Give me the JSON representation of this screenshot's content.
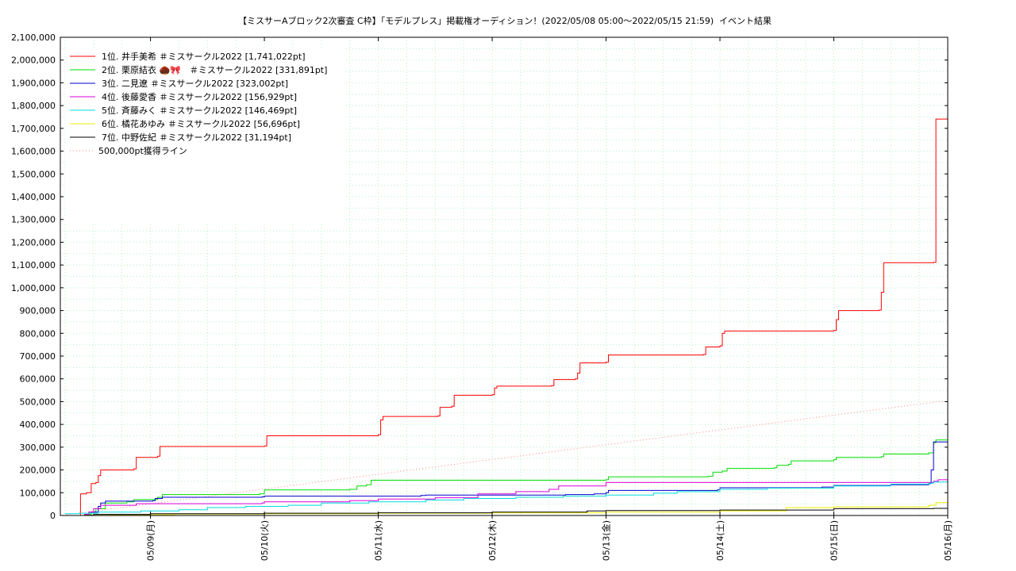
{
  "title": "【ミスサーAブロック2次審査 C枠】「モデルプレス」掲載権オーディション！(2022/05/08 05:00～2022/05/15 21:59)",
  "subtitle": "イベント結果",
  "chart_data": {
    "type": "line",
    "title": "【ミスサーAブロック2次審査 C枠】「モデルプレス」掲載権オーディション！(2022/05/08 05:00～2022/05/15 21:59)",
    "subtitle": "イベント結果",
    "xlabel": "",
    "ylabel": "",
    "x_range": [
      "2022-05-08T05:00",
      "2022-05-16T00:00"
    ],
    "ylim": [
      0,
      2100000
    ],
    "y_ticks": [
      0,
      100000,
      200000,
      300000,
      400000,
      500000,
      600000,
      700000,
      800000,
      900000,
      1000000,
      1100000,
      1200000,
      1300000,
      1400000,
      1500000,
      1600000,
      1700000,
      1800000,
      1900000,
      2000000,
      2100000
    ],
    "y_tick_labels": [
      "0",
      "100,000",
      "200,000",
      "300,000",
      "400,000",
      "500,000",
      "600,000",
      "700,000",
      "800,000",
      "900,000",
      "1,000,000",
      "1,100,000",
      "1,200,000",
      "1,300,000",
      "1,400,000",
      "1,500,000",
      "1,600,000",
      "1,700,000",
      "1,800,000",
      "1,900,000",
      "2,000,000",
      "2,100,000"
    ],
    "x_ticks": [
      "2022-05-09T00:00",
      "2022-05-10T00:00",
      "2022-05-11T00:00",
      "2022-05-12T00:00",
      "2022-05-13T00:00",
      "2022-05-14T00:00",
      "2022-05-15T00:00",
      "2022-05-16T00:00"
    ],
    "x_tick_labels": [
      "05/09(月)",
      "05/10(火)",
      "05/11(水)",
      "05/12(木)",
      "05/13(金)",
      "05/14(土)",
      "05/15(日)",
      "05/16(月)"
    ],
    "grid": true,
    "legend_position": "top-left",
    "series": [
      {
        "name": "1位. 井手美希 ＃ミスサークル2022 [1,741,022pt]",
        "color": "#ff0000",
        "style": "step",
        "points": [
          [
            "2022-05-08T09:00",
            0
          ],
          [
            "2022-05-08T09:15",
            95000
          ],
          [
            "2022-05-08T10:30",
            100000
          ],
          [
            "2022-05-08T11:30",
            140000
          ],
          [
            "2022-05-08T12:30",
            145000
          ],
          [
            "2022-05-08T13:00",
            175000
          ],
          [
            "2022-05-08T13:30",
            200000
          ],
          [
            "2022-05-08T20:30",
            205000
          ],
          [
            "2022-05-08T21:00",
            255000
          ],
          [
            "2022-05-09T01:30",
            260000
          ],
          [
            "2022-05-09T02:00",
            303000
          ],
          [
            "2022-05-10T00:00",
            305000
          ],
          [
            "2022-05-10T00:30",
            350000
          ],
          [
            "2022-05-11T00:00",
            355000
          ],
          [
            "2022-05-11T00:30",
            420000
          ],
          [
            "2022-05-11T01:00",
            435000
          ],
          [
            "2022-05-11T12:30",
            437000
          ],
          [
            "2022-05-11T13:00",
            475000
          ],
          [
            "2022-05-11T15:30",
            480000
          ],
          [
            "2022-05-11T16:00",
            528000
          ],
          [
            "2022-05-12T00:00",
            530000
          ],
          [
            "2022-05-12T00:30",
            560000
          ],
          [
            "2022-05-12T01:00",
            568000
          ],
          [
            "2022-05-12T12:30",
            570000
          ],
          [
            "2022-05-12T13:00",
            597000
          ],
          [
            "2022-05-12T17:30",
            600000
          ],
          [
            "2022-05-12T18:00",
            625000
          ],
          [
            "2022-05-12T18:30",
            670000
          ],
          [
            "2022-05-13T00:00",
            673000
          ],
          [
            "2022-05-13T00:30",
            705000
          ],
          [
            "2022-05-13T20:30",
            707000
          ],
          [
            "2022-05-13T21:00",
            740000
          ],
          [
            "2022-05-14T00:00",
            745000
          ],
          [
            "2022-05-14T00:30",
            800000
          ],
          [
            "2022-05-14T01:00",
            810000
          ],
          [
            "2022-05-15T00:00",
            812000
          ],
          [
            "2022-05-15T00:30",
            860000
          ],
          [
            "2022-05-15T01:00",
            900000
          ],
          [
            "2022-05-15T09:30",
            902000
          ],
          [
            "2022-05-15T10:00",
            980000
          ],
          [
            "2022-05-15T10:30",
            1110000
          ],
          [
            "2022-05-15T21:00",
            1112000
          ],
          [
            "2022-05-15T21:30",
            1741022
          ],
          [
            "2022-05-16T00:00",
            1741022
          ]
        ]
      },
      {
        "name": "2位. 栗原結衣 🌰🎀　＃ミスサークル2022 [331,891pt]",
        "color": "#00dd00",
        "style": "step",
        "points": [
          [
            "2022-05-08T10:00",
            5000
          ],
          [
            "2022-05-08T11:30",
            15000
          ],
          [
            "2022-05-08T12:30",
            30000
          ],
          [
            "2022-05-08T14:30",
            55000
          ],
          [
            "2022-05-08T19:00",
            60000
          ],
          [
            "2022-05-08T20:30",
            70000
          ],
          [
            "2022-05-09T01:30",
            80000
          ],
          [
            "2022-05-09T02:30",
            92000
          ],
          [
            "2022-05-09T23:00",
            95000
          ],
          [
            "2022-05-10T00:00",
            112000
          ],
          [
            "2022-05-10T18:00",
            115000
          ],
          [
            "2022-05-10T19:30",
            130000
          ],
          [
            "2022-05-10T21:30",
            135000
          ],
          [
            "2022-05-10T22:30",
            155000
          ],
          [
            "2022-05-13T00:00",
            157000
          ],
          [
            "2022-05-13T00:30",
            170000
          ],
          [
            "2022-05-13T21:30",
            172000
          ],
          [
            "2022-05-13T22:30",
            190000
          ],
          [
            "2022-05-14T00:30",
            195000
          ],
          [
            "2022-05-14T01:30",
            207000
          ],
          [
            "2022-05-14T11:30",
            210000
          ],
          [
            "2022-05-14T12:00",
            220000
          ],
          [
            "2022-05-14T14:30",
            225000
          ],
          [
            "2022-05-14T15:00",
            240000
          ],
          [
            "2022-05-15T00:00",
            245000
          ],
          [
            "2022-05-15T00:30",
            255000
          ],
          [
            "2022-05-15T10:00",
            258000
          ],
          [
            "2022-05-15T10:30",
            270000
          ],
          [
            "2022-05-15T20:00",
            275000
          ],
          [
            "2022-05-15T21:00",
            320000
          ],
          [
            "2022-05-15T21:30",
            331891
          ],
          [
            "2022-05-16T00:00",
            331891
          ]
        ]
      },
      {
        "name": "3位. 二見遼 ＃ミスサークル2022 [323,002pt]",
        "color": "#0000cc",
        "style": "step",
        "points": [
          [
            "2022-05-08T10:00",
            5000
          ],
          [
            "2022-05-08T11:00",
            15000
          ],
          [
            "2022-05-08T13:00",
            40000
          ],
          [
            "2022-05-08T13:30",
            55000
          ],
          [
            "2022-05-08T14:30",
            63000
          ],
          [
            "2022-05-09T00:30",
            65000
          ],
          [
            "2022-05-09T01:00",
            75000
          ],
          [
            "2022-05-09T02:30",
            80000
          ],
          [
            "2022-05-09T23:30",
            82000
          ],
          [
            "2022-05-10T00:00",
            85000
          ],
          [
            "2022-05-11T09:00",
            88000
          ],
          [
            "2022-05-11T10:00",
            90000
          ],
          [
            "2022-05-12T15:30",
            92000
          ],
          [
            "2022-05-12T21:30",
            95000
          ],
          [
            "2022-05-13T00:00",
            100000
          ],
          [
            "2022-05-13T00:30",
            110000
          ],
          [
            "2022-05-13T23:30",
            113000
          ],
          [
            "2022-05-14T00:00",
            122000
          ],
          [
            "2022-05-14T21:30",
            125000
          ],
          [
            "2022-05-15T00:00",
            132000
          ],
          [
            "2022-05-15T12:00",
            135000
          ],
          [
            "2022-05-15T20:00",
            140000
          ],
          [
            "2022-05-15T20:30",
            200000
          ],
          [
            "2022-05-15T21:00",
            323002
          ],
          [
            "2022-05-16T00:00",
            323002
          ]
        ]
      },
      {
        "name": "4位. 後藤愛香 ＃ミスサークル2022 [156,929pt]",
        "color": "#dd00dd",
        "style": "step",
        "points": [
          [
            "2022-05-08T10:00",
            5000
          ],
          [
            "2022-05-08T11:00",
            15000
          ],
          [
            "2022-05-08T12:00",
            30000
          ],
          [
            "2022-05-08T13:30",
            45000
          ],
          [
            "2022-05-08T21:00",
            52000
          ],
          [
            "2022-05-09T23:30",
            55000
          ],
          [
            "2022-05-10T00:00",
            60000
          ],
          [
            "2022-05-10T18:00",
            65000
          ],
          [
            "2022-05-11T00:00",
            72000
          ],
          [
            "2022-05-11T12:00",
            78000
          ],
          [
            "2022-05-11T21:00",
            95000
          ],
          [
            "2022-05-12T05:00",
            105000
          ],
          [
            "2022-05-12T12:00",
            115000
          ],
          [
            "2022-05-12T14:00",
            130000
          ],
          [
            "2022-05-13T00:00",
            145000
          ],
          [
            "2022-05-15T21:00",
            150000
          ],
          [
            "2022-05-15T22:00",
            156929
          ],
          [
            "2022-05-16T00:00",
            156929
          ]
        ]
      },
      {
        "name": "5位. 斉藤みく ＃ミスサークル2022 [146,469pt]",
        "color": "#00dddd",
        "style": "step",
        "points": [
          [
            "2022-05-08T06:00",
            8000
          ],
          [
            "2022-05-08T09:00",
            10000
          ],
          [
            "2022-05-08T13:00",
            15000
          ],
          [
            "2022-05-08T22:00",
            20000
          ],
          [
            "2022-05-09T06:00",
            25000
          ],
          [
            "2022-05-09T12:00",
            35000
          ],
          [
            "2022-05-09T20:00",
            40000
          ],
          [
            "2022-05-10T05:00",
            45000
          ],
          [
            "2022-05-10T12:00",
            55000
          ],
          [
            "2022-05-10T22:00",
            60000
          ],
          [
            "2022-05-11T10:00",
            68000
          ],
          [
            "2022-05-11T18:00",
            75000
          ],
          [
            "2022-05-12T05:00",
            80000
          ],
          [
            "2022-05-12T15:00",
            85000
          ],
          [
            "2022-05-13T00:00",
            90000
          ],
          [
            "2022-05-13T10:00",
            98000
          ],
          [
            "2022-05-13T15:00",
            105000
          ],
          [
            "2022-05-14T00:00",
            115000
          ],
          [
            "2022-05-14T10:00",
            120000
          ],
          [
            "2022-05-15T00:00",
            130000
          ],
          [
            "2022-05-15T12:00",
            138000
          ],
          [
            "2022-05-15T20:00",
            142000
          ],
          [
            "2022-05-15T21:00",
            146469
          ],
          [
            "2022-05-16T00:00",
            146469
          ]
        ]
      },
      {
        "name": "6位. 橘花あゆみ ＃ミスサークル2022 [56,696pt]",
        "color": "#eeee00",
        "style": "step",
        "points": [
          [
            "2022-05-08T10:00",
            1000
          ],
          [
            "2022-05-08T15:00",
            3000
          ],
          [
            "2022-05-09T05:00",
            6000
          ],
          [
            "2022-05-10T00:00",
            8000
          ],
          [
            "2022-05-11T00:00",
            10000
          ],
          [
            "2022-05-12T00:00",
            12000
          ],
          [
            "2022-05-13T00:00",
            15000
          ],
          [
            "2022-05-14T00:00",
            20000
          ],
          [
            "2022-05-14T14:00",
            35000
          ],
          [
            "2022-05-15T00:00",
            38000
          ],
          [
            "2022-05-15T20:00",
            45000
          ],
          [
            "2022-05-15T21:30",
            56696
          ],
          [
            "2022-05-16T00:00",
            56696
          ]
        ]
      },
      {
        "name": "7位. 中野佐紀 ＃ミスサークル2022 [31,194pt]",
        "color": "#000000",
        "style": "step",
        "points": [
          [
            "2022-05-08T10:00",
            1000
          ],
          [
            "2022-05-08T12:00",
            5000
          ],
          [
            "2022-05-09T00:00",
            8000
          ],
          [
            "2022-05-10T00:00",
            10000
          ],
          [
            "2022-05-11T00:00",
            12000
          ],
          [
            "2022-05-12T00:00",
            15000
          ],
          [
            "2022-05-12T20:00",
            20000
          ],
          [
            "2022-05-13T00:00",
            22000
          ],
          [
            "2022-05-14T00:00",
            24000
          ],
          [
            "2022-05-15T00:00",
            30000
          ],
          [
            "2022-05-15T21:00",
            31194
          ],
          [
            "2022-05-16T00:00",
            31194
          ]
        ]
      },
      {
        "name": "500,000pt獲得ライン",
        "color": "#ff8888",
        "style": "dotted",
        "points": [
          [
            "2022-05-08T05:00",
            0
          ],
          [
            "2022-05-15T21:59",
            500000
          ],
          [
            "2022-05-16T00:00",
            500000
          ]
        ]
      }
    ]
  }
}
